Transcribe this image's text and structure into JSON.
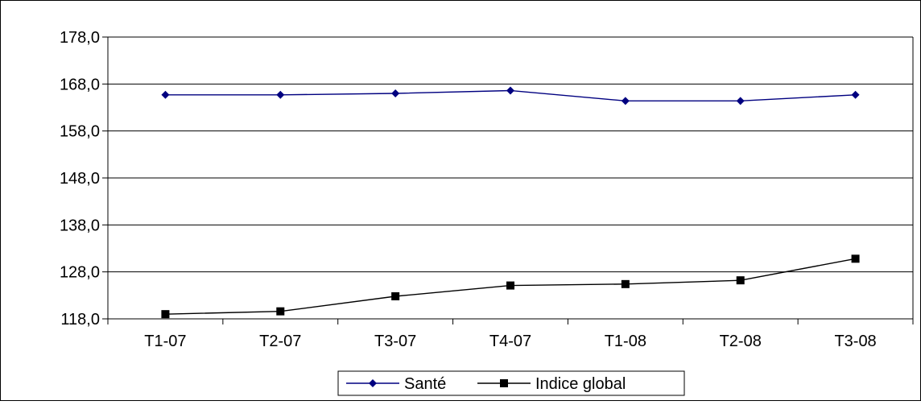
{
  "chart_data": {
    "type": "line",
    "categories": [
      "T1-07",
      "T2-07",
      "T3-07",
      "T4-07",
      "T1-08",
      "T2-08",
      "T3-08"
    ],
    "series": [
      {
        "name": "Santé",
        "values": [
          165.7,
          165.7,
          166.0,
          166.6,
          164.4,
          164.4,
          165.7
        ],
        "color": "#000080",
        "marker": "diamond"
      },
      {
        "name": "Indice global",
        "values": [
          119.0,
          119.6,
          122.8,
          125.1,
          125.4,
          126.2,
          130.8
        ],
        "color": "#000000",
        "marker": "square"
      }
    ],
    "ylim": [
      118.0,
      178.0
    ],
    "y_ticks": [
      "118,0",
      "128,0",
      "138,0",
      "148,0",
      "158,0",
      "168,0",
      "178,0"
    ],
    "grid": "horizontal",
    "legend_position": "bottom",
    "title": "",
    "xlabel": "",
    "ylabel": ""
  }
}
